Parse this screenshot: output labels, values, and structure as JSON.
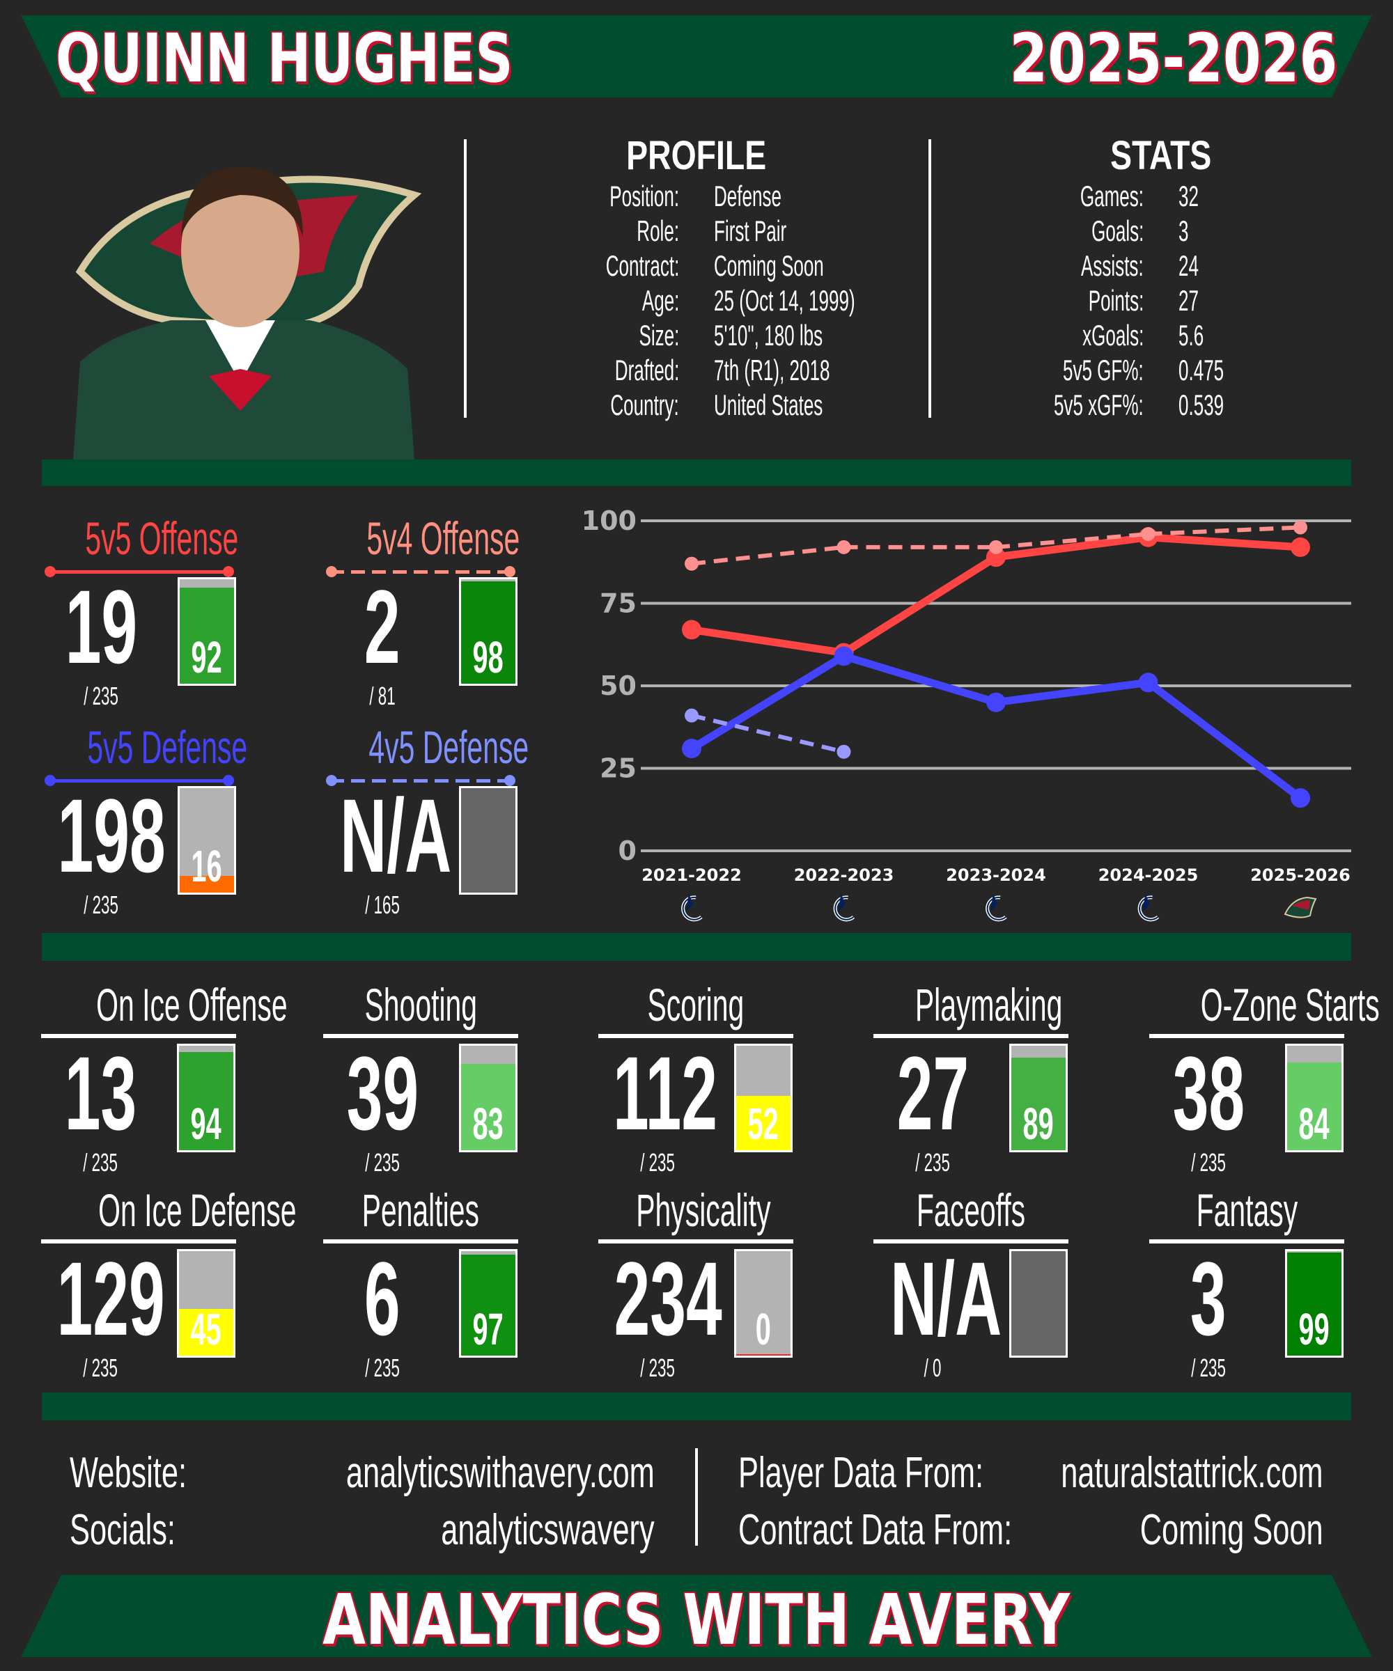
{
  "header": {
    "player_name": "QUINN HUGHES",
    "season": "2025-2026"
  },
  "profile": {
    "title": "PROFILE",
    "rows": [
      {
        "label": "Position:",
        "value": "Defense"
      },
      {
        "label": "Role:",
        "value": "First Pair"
      },
      {
        "label": "Contract:",
        "value": "Coming Soon"
      },
      {
        "label": "Age:",
        "value": "25 (Oct 14, 1999)"
      },
      {
        "label": "Size:",
        "value": "5'10\", 180 lbs"
      },
      {
        "label": "Drafted:",
        "value": "7th (R1), 2018"
      },
      {
        "label": "Country:",
        "value": "United States"
      }
    ]
  },
  "stats": {
    "title": "STATS",
    "rows": [
      {
        "label": "Games:",
        "value": "32"
      },
      {
        "label": "Goals:",
        "value": "3"
      },
      {
        "label": "Assists:",
        "value": "24"
      },
      {
        "label": "Points:",
        "value": "27"
      },
      {
        "label": "xGoals:",
        "value": "5.6"
      },
      {
        "label": "5v5 GF%:",
        "value": "0.475"
      },
      {
        "label": "5v5 xGF%:",
        "value": "0.539"
      }
    ]
  },
  "special_tiles": [
    {
      "title": "5v5 Offense",
      "color": "#ff4444",
      "dashed": false,
      "rank": "19",
      "of": "/ 235",
      "percentile": 92,
      "fill": "#2ea22e"
    },
    {
      "title": "5v4 Offense",
      "color": "#ff9080",
      "dashed": true,
      "rank": "2",
      "of": "/ 81",
      "percentile": 98,
      "fill": "#0a860a"
    },
    {
      "title": "5v5 Defense",
      "color": "#4444ff",
      "dashed": false,
      "rank": "198",
      "of": "/ 235",
      "percentile": 16,
      "fill": "#ff6a00"
    },
    {
      "title": "4v5 Defense",
      "color": "#8090ff",
      "dashed": true,
      "rank": "N/A",
      "of": "/ 165",
      "percentile": null,
      "fill": "#666666"
    }
  ],
  "chart_data": {
    "type": "line",
    "categories": [
      "2021-2022",
      "2022-2023",
      "2023-2024",
      "2024-2025",
      "2025-2026"
    ],
    "team_logos": [
      "canucks-logo",
      "canucks-logo",
      "canucks-logo",
      "canucks-logo",
      "wild-logo"
    ],
    "ylim": [
      0,
      100
    ],
    "yticks": [
      0,
      25,
      50,
      75,
      100
    ],
    "grid": true,
    "series": [
      {
        "key": "5v5 Offense",
        "color": "#ff4444",
        "dashed": false,
        "values": [
          67,
          60,
          89,
          95,
          92
        ]
      },
      {
        "key": "5v4 Offense",
        "color": "#ff9090",
        "dashed": true,
        "values": [
          87,
          92,
          92,
          96,
          98
        ]
      },
      {
        "key": "5v5 Defense",
        "color": "#4444ff",
        "dashed": false,
        "values": [
          31,
          59,
          45,
          51,
          16
        ]
      },
      {
        "key": "4v5 Defense",
        "color": "#9999ff",
        "dashed": true,
        "values": [
          41,
          30,
          null,
          null,
          null
        ]
      }
    ]
  },
  "tiles": [
    {
      "title": "On Ice Offense",
      "rank": "13",
      "of": "/ 235",
      "percentile": 94,
      "fill": "#2ea22e"
    },
    {
      "title": "Shooting",
      "rank": "39",
      "of": "/ 235",
      "percentile": 83,
      "fill": "#66cc66"
    },
    {
      "title": "Scoring",
      "rank": "112",
      "of": "/ 235",
      "percentile": 52,
      "fill": "#ffff00"
    },
    {
      "title": "Playmaking",
      "rank": "27",
      "of": "/ 235",
      "percentile": 89,
      "fill": "#44b044"
    },
    {
      "title": "O-Zone Starts",
      "rank": "38",
      "of": "/ 235",
      "percentile": 84,
      "fill": "#66cc66"
    },
    {
      "title": "On Ice Defense",
      "rank": "129",
      "of": "/ 235",
      "percentile": 45,
      "fill": "#ffff00"
    },
    {
      "title": "Penalties",
      "rank": "6",
      "of": "/ 235",
      "percentile": 97,
      "fill": "#109010"
    },
    {
      "title": "Physicality",
      "rank": "234",
      "of": "/ 235",
      "percentile": 0,
      "fill": "#ff2020"
    },
    {
      "title": "Faceoffs",
      "rank": "N/A",
      "of": "/ 0",
      "percentile": null,
      "fill": "#666666"
    },
    {
      "title": "Fantasy",
      "rank": "3",
      "of": "/ 235",
      "percentile": 99,
      "fill": "#008000"
    }
  ],
  "footer": {
    "website_label": "Website:",
    "website": "analyticswithavery.com",
    "socials_label": "Socials:",
    "socials": "analyticswavery",
    "player_data_label": "Player Data From:",
    "player_data": "naturalstattrick.com",
    "contract_data_label": "Contract Data From:",
    "contract_data": "Coming Soon",
    "brand": "ANALYTICS WITH AVERY"
  },
  "colors": {
    "green": "#004d2f",
    "red": "#c8102e",
    "background": "#262626"
  }
}
